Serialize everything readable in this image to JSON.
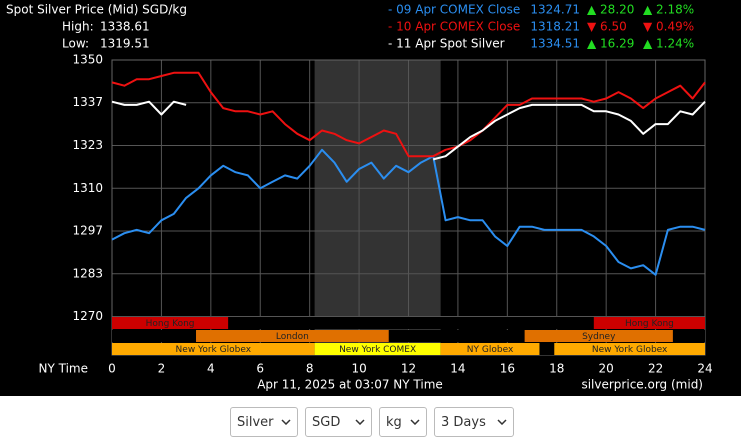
{
  "chart_data": {
    "type": "line",
    "title": "Spot Silver Price (Mid) SGD/kg",
    "high_label": "High:",
    "high": "1338.61",
    "low_label": "Low:",
    "low": "1319.51",
    "x_axis_label": "NY Time",
    "timestamp": "Apr 11, 2025 at 03:07 NY Time",
    "source": "silverprice.org (mid)",
    "xlim": [
      0,
      24
    ],
    "xticks": [
      0,
      2,
      4,
      6,
      8,
      10,
      12,
      14,
      16,
      18,
      20,
      22,
      24
    ],
    "ylim": [
      1258,
      1350
    ],
    "yticks": [
      1350,
      {
        "value": 1336.67,
        "label": "1337"
      },
      {
        "value": 1323.33,
        "label": "1323"
      },
      1310,
      {
        "value": 1296.67,
        "label": "1297"
      },
      {
        "value": 1283.33,
        "label": "1283"
      },
      1270
    ],
    "grid": true,
    "shaded_range": [
      8.2,
      13.3
    ],
    "x": [
      0,
      0.5,
      1,
      1.5,
      2,
      2.5,
      3,
      3.5,
      4,
      4.5,
      5,
      5.5,
      6,
      6.5,
      7,
      7.5,
      8,
      8.5,
      9,
      9.5,
      10,
      10.5,
      11,
      11.5,
      12,
      12.5,
      13,
      13.5,
      14,
      14.5,
      15,
      15.5,
      16,
      16.5,
      17,
      17.5,
      18,
      18.5,
      19,
      19.5,
      20,
      20.5,
      21,
      21.5,
      22,
      22.5,
      23,
      23.5,
      24
    ],
    "series": [
      {
        "name": "- 09 Apr COMEX Close",
        "color": "#2b8ef0",
        "last": "1324.71",
        "change": "▲ 28.20",
        "pct": "▲ 2.18%",
        "change_color": "#22dd22",
        "values": [
          1294,
          1296,
          1297,
          1296,
          1300,
          1302,
          1307,
          1310,
          1314,
          1317,
          1315,
          1314,
          1310,
          1312,
          1314,
          1313,
          1317,
          1322,
          1318,
          1312,
          1316,
          1318,
          1313,
          1317,
          1315,
          1318,
          1320,
          1300,
          1301,
          1300,
          1300,
          1295,
          1292,
          1298,
          1298,
          1297,
          1297,
          1297,
          1297,
          1295,
          1292,
          1287,
          1285,
          1286,
          1283,
          1297,
          1298,
          1298,
          1297
        ]
      },
      {
        "name": "- 10 Apr COMEX Close",
        "color": "#ee1111",
        "last": "1318.21",
        "change": "▼ 6.50",
        "pct": "▼ 0.49%",
        "change_color": "#ee1111",
        "values": [
          1343,
          1342,
          1344,
          1344,
          1345,
          1346,
          1346,
          1346,
          1340,
          1335,
          1334,
          1334,
          1333,
          1334,
          1330,
          1327,
          1325,
          1328,
          1327,
          1325,
          1324,
          1326,
          1328,
          1327,
          1320,
          1320,
          1320,
          1322,
          1323,
          1325,
          1328,
          1332,
          1336,
          1336,
          1338,
          1338,
          1338,
          1338,
          1338,
          1337,
          1338,
          1340,
          1338,
          1335,
          1338,
          1340,
          1342,
          1338,
          1343
        ]
      },
      {
        "name": "- 11 Apr Spot Silver",
        "color": "#ffffff",
        "last": "1334.51",
        "change": "▲ 16.29",
        "pct": "▲ 1.24%",
        "change_color": "#22dd22",
        "values": [
          1337,
          1336,
          1336,
          1337,
          1333,
          1337,
          1336,
          null,
          null,
          null,
          null,
          null,
          null,
          null,
          null,
          null,
          null,
          null,
          null,
          null,
          null,
          null,
          null,
          null,
          null,
          null,
          1319,
          1320,
          1323,
          1326,
          1328,
          1331,
          1333,
          1335,
          1336,
          1336,
          1336,
          1336,
          1336,
          1334,
          1334,
          1333,
          1331,
          1327,
          1330,
          1330,
          1334,
          1333,
          1337
        ]
      }
    ],
    "sessions": [
      {
        "name": "Hong Kong",
        "row": 0,
        "start": 0,
        "end": 4.7,
        "color": "#cc0000"
      },
      {
        "name": "Hong Kong",
        "row": 0,
        "start": 19.5,
        "end": 24,
        "color": "#cc0000"
      },
      {
        "name": "London",
        "row": 1,
        "start": 3.4,
        "end": 11.2,
        "color": "#e07000"
      },
      {
        "name": "Sydney",
        "row": 1,
        "start": 16.7,
        "end": 22.7,
        "color": "#e07000"
      },
      {
        "name": "New York Globex",
        "row": 2,
        "start": 0,
        "end": 8.2,
        "color": "#ffaa00"
      },
      {
        "name": "New York COMEX",
        "row": 2,
        "start": 8.2,
        "end": 13.3,
        "color": "#ffff00"
      },
      {
        "name": "NY Globex",
        "row": 2,
        "start": 13.3,
        "end": 17.3,
        "color": "#ffaa00"
      },
      {
        "name": "New York Globex",
        "row": 2,
        "start": 17.9,
        "end": 24,
        "color": "#ffaa00"
      }
    ]
  },
  "controls": [
    "Silver",
    "SGD",
    "kg",
    "3 Days"
  ]
}
